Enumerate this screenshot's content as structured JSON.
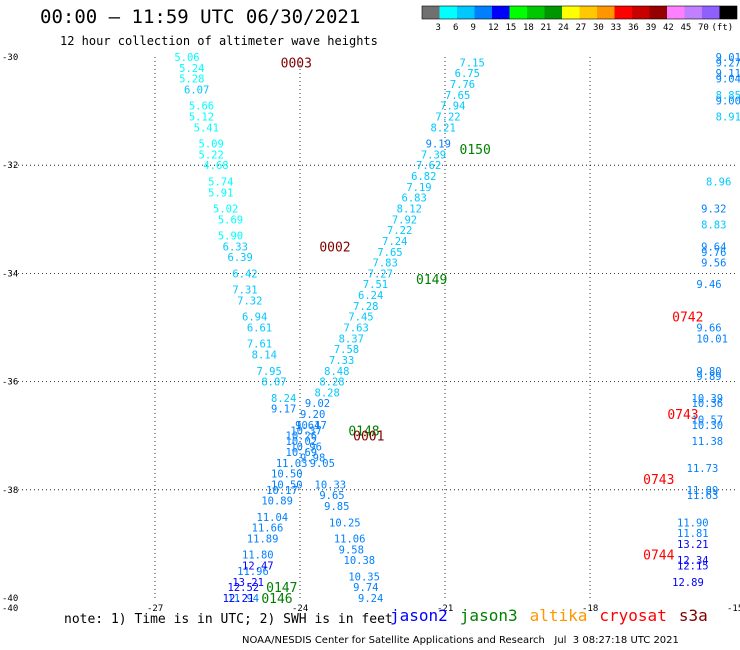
{
  "header": {
    "title": "00:00 – 11:59 UTC 06/30/2021",
    "subtitle": "12 hour collection of altimeter wave heights"
  },
  "colorbar": {
    "colors": [
      "#707070",
      "#00ffff",
      "#00c8ff",
      "#0080ff",
      "#0000ff",
      "#00ff00",
      "#00c800",
      "#009600",
      "#ffff00",
      "#ffc800",
      "#ff9600",
      "#ff0000",
      "#c80000",
      "#960000",
      "#ff80ff",
      "#c080ff",
      "#9060ff",
      "#000000"
    ],
    "labels": [
      "3",
      "6",
      "9",
      "12",
      "15",
      "18",
      "21",
      "24",
      "27",
      "30",
      "33",
      "36",
      "39",
      "42",
      "45",
      "70",
      "(ft)"
    ]
  },
  "footer": {
    "note": "note: 1) Time is in UTC; 2) SWH is in feet",
    "credit": "NOAA/NESDIS Center for Satellite Applications and Research   Jul  3 08:27:18 UTC 2021"
  },
  "legend": [
    {
      "name": "jason2",
      "color": "#0000ff"
    },
    {
      "name": "jason3",
      "color": "#008000"
    },
    {
      "name": "altika",
      "color": "#ff9600"
    },
    {
      "name": "cryosat",
      "color": "#ff0000"
    },
    {
      "name": "s3a",
      "color": "#800000"
    }
  ],
  "chart_data": {
    "type": "scatter",
    "title": "",
    "xlim": [
      -30,
      -15
    ],
    "ylim": [
      -40,
      -30
    ],
    "xticks": [
      -27,
      -24,
      -21,
      -18,
      -15
    ],
    "yticks": [
      -30,
      -32,
      -34,
      -36,
      -38,
      -40
    ],
    "xtick_labels": [
      "-27",
      "-24",
      "-21",
      "-18",
      "-15"
    ],
    "ytick_labels": [
      "-30",
      "-32",
      "-34",
      "-36",
      "-38",
      "-40"
    ],
    "grid": true,
    "tracks": [
      {
        "label": "0003",
        "x": -24.4,
        "y": -30.1,
        "color": "#800000"
      },
      {
        "label": "0002",
        "x": -23.6,
        "y": -33.5,
        "color": "#800000"
      },
      {
        "label": "0150",
        "x": -20.7,
        "y": -31.7,
        "color": "#008000"
      },
      {
        "label": "0149",
        "x": -21.6,
        "y": -34.1,
        "color": "#008000"
      },
      {
        "label": "0148",
        "x": -23.0,
        "y": -36.9,
        "color": "#008000"
      },
      {
        "label": "0001",
        "x": -22.9,
        "y": -37.0,
        "color": "#800000"
      },
      {
        "label": "0147",
        "x": -24.7,
        "y": -39.8,
        "color": "#008000"
      },
      {
        "label": "0146",
        "x": -24.8,
        "y": -40.0,
        "color": "#008000"
      },
      {
        "label": "0742",
        "x": -16.3,
        "y": -34.8,
        "color": "#ff0000"
      },
      {
        "label": "0743",
        "x": -16.4,
        "y": -36.6,
        "color": "#ff0000"
      },
      {
        "label": "0743",
        "x": -16.9,
        "y": -37.8,
        "color": "#ff0000"
      },
      {
        "label": "0744",
        "x": -16.9,
        "y": -39.2,
        "color": "#ff0000"
      }
    ],
    "points": [
      {
        "x": -26.6,
        "y": -30.0,
        "v": "5.06"
      },
      {
        "x": -26.5,
        "y": -30.2,
        "v": "5.24"
      },
      {
        "x": -26.5,
        "y": -30.4,
        "v": "5.28"
      },
      {
        "x": -26.4,
        "y": -30.6,
        "v": "6.07"
      },
      {
        "x": -26.3,
        "y": -30.9,
        "v": "5.66"
      },
      {
        "x": -26.3,
        "y": -31.1,
        "v": "5.12"
      },
      {
        "x": -26.2,
        "y": -31.3,
        "v": "5.41"
      },
      {
        "x": -26.1,
        "y": -31.6,
        "v": "5.09"
      },
      {
        "x": -26.1,
        "y": -31.8,
        "v": "5.22"
      },
      {
        "x": -26.0,
        "y": -32.0,
        "v": "4.68"
      },
      {
        "x": -25.9,
        "y": -32.3,
        "v": "5.74"
      },
      {
        "x": -25.9,
        "y": -32.5,
        "v": "5.91"
      },
      {
        "x": -25.8,
        "y": -32.8,
        "v": "5.02"
      },
      {
        "x": -25.7,
        "y": -33.0,
        "v": "5.69"
      },
      {
        "x": -25.7,
        "y": -33.3,
        "v": "5.90"
      },
      {
        "x": -25.6,
        "y": -33.5,
        "v": "6.33"
      },
      {
        "x": -25.5,
        "y": -33.7,
        "v": "6.39"
      },
      {
        "x": -25.4,
        "y": -34.0,
        "v": "6.42"
      },
      {
        "x": -25.4,
        "y": -34.3,
        "v": "7.31"
      },
      {
        "x": -25.3,
        "y": -34.5,
        "v": "7.32"
      },
      {
        "x": -25.2,
        "y": -34.8,
        "v": "6.94"
      },
      {
        "x": -25.1,
        "y": -35.0,
        "v": "6.61"
      },
      {
        "x": -25.1,
        "y": -35.3,
        "v": "7.61"
      },
      {
        "x": -25.0,
        "y": -35.5,
        "v": "8.14"
      },
      {
        "x": -24.9,
        "y": -35.8,
        "v": "7.95"
      },
      {
        "x": -24.8,
        "y": -36.0,
        "v": "8.07"
      },
      {
        "x": -24.6,
        "y": -36.3,
        "v": "8.24"
      },
      {
        "x": -20.7,
        "y": -30.1,
        "v": "7.15"
      },
      {
        "x": -20.8,
        "y": -30.3,
        "v": "6.75"
      },
      {
        "x": -20.9,
        "y": -30.5,
        "v": "7.76"
      },
      {
        "x": -21.0,
        "y": -30.7,
        "v": "7.65"
      },
      {
        "x": -21.1,
        "y": -30.9,
        "v": "7.94"
      },
      {
        "x": -21.2,
        "y": -31.1,
        "v": "7.22"
      },
      {
        "x": -21.3,
        "y": -31.3,
        "v": "8.21"
      },
      {
        "x": -21.4,
        "y": -31.6,
        "v": "9.19"
      },
      {
        "x": -21.5,
        "y": -31.8,
        "v": "7.39"
      },
      {
        "x": -21.6,
        "y": -32.0,
        "v": "7.62"
      },
      {
        "x": -21.7,
        "y": -32.2,
        "v": "6.82"
      },
      {
        "x": -21.8,
        "y": -32.4,
        "v": "7.19"
      },
      {
        "x": -21.9,
        "y": -32.6,
        "v": "6.83"
      },
      {
        "x": -22.0,
        "y": -32.8,
        "v": "8.12"
      },
      {
        "x": -22.1,
        "y": -33.0,
        "v": "7.92"
      },
      {
        "x": -22.2,
        "y": -33.2,
        "v": "7.22"
      },
      {
        "x": -22.3,
        "y": -33.4,
        "v": "7.24"
      },
      {
        "x": -22.4,
        "y": -33.6,
        "v": "7.65"
      },
      {
        "x": -22.5,
        "y": -33.8,
        "v": "7.83"
      },
      {
        "x": -22.6,
        "y": -34.0,
        "v": "7.27"
      },
      {
        "x": -22.7,
        "y": -34.2,
        "v": "7.51"
      },
      {
        "x": -22.8,
        "y": -34.4,
        "v": "6.24"
      },
      {
        "x": -22.9,
        "y": -34.6,
        "v": "7.28"
      },
      {
        "x": -23.0,
        "y": -34.8,
        "v": "7.45"
      },
      {
        "x": -23.1,
        "y": -35.0,
        "v": "7.63"
      },
      {
        "x": -23.2,
        "y": -35.2,
        "v": "8.37"
      },
      {
        "x": -23.3,
        "y": -35.4,
        "v": "7.58"
      },
      {
        "x": -23.4,
        "y": -35.6,
        "v": "7.33"
      },
      {
        "x": -23.5,
        "y": -35.8,
        "v": "8.48"
      },
      {
        "x": -23.6,
        "y": -36.0,
        "v": "8.28"
      },
      {
        "x": -23.7,
        "y": -36.2,
        "v": "8.28"
      },
      {
        "x": -23.9,
        "y": -36.4,
        "v": "9.02"
      },
      {
        "x": -24.0,
        "y": -36.6,
        "v": "9.20"
      },
      {
        "x": -24.1,
        "y": -36.8,
        "v": "9.64"
      },
      {
        "x": -24.6,
        "y": -36.5,
        "v": "9.17"
      },
      {
        "x": -24.1,
        "y": -36.8,
        "v": "10.17"
      },
      {
        "x": -24.2,
        "y": -36.9,
        "v": "10.37"
      },
      {
        "x": -24.3,
        "y": -37.0,
        "v": "10.26"
      },
      {
        "x": -24.3,
        "y": -37.1,
        "v": "10.02"
      },
      {
        "x": -24.2,
        "y": -37.2,
        "v": "10.96"
      },
      {
        "x": -24.3,
        "y": -37.3,
        "v": "10.69"
      },
      {
        "x": -24.0,
        "y": -37.4,
        "v": "9.98"
      },
      {
        "x": -24.5,
        "y": -37.5,
        "v": "11.03"
      },
      {
        "x": -23.8,
        "y": -37.5,
        "v": "9.05"
      },
      {
        "x": -24.6,
        "y": -37.7,
        "v": "10.50"
      },
      {
        "x": -24.6,
        "y": -37.9,
        "v": "10.50"
      },
      {
        "x": -23.7,
        "y": -37.9,
        "v": "10.33"
      },
      {
        "x": -24.7,
        "y": -38.0,
        "v": "10.17"
      },
      {
        "x": -23.6,
        "y": -38.1,
        "v": "9.65"
      },
      {
        "x": -24.8,
        "y": -38.2,
        "v": "10.89"
      },
      {
        "x": -23.5,
        "y": -38.3,
        "v": "9.85"
      },
      {
        "x": -24.9,
        "y": -38.5,
        "v": "11.04"
      },
      {
        "x": -23.4,
        "y": -38.6,
        "v": "10.25"
      },
      {
        "x": -25.0,
        "y": -38.7,
        "v": "11.66"
      },
      {
        "x": -23.3,
        "y": -38.9,
        "v": "11.06"
      },
      {
        "x": -25.1,
        "y": -38.9,
        "v": "11.89"
      },
      {
        "x": -23.2,
        "y": -39.1,
        "v": "9.58"
      },
      {
        "x": -25.2,
        "y": -39.2,
        "v": "11.80"
      },
      {
        "x": -23.1,
        "y": -39.3,
        "v": "10.38"
      },
      {
        "x": -25.3,
        "y": -39.5,
        "v": "11.96"
      },
      {
        "x": -23.0,
        "y": -39.6,
        "v": "10.35"
      },
      {
        "x": -22.9,
        "y": -39.8,
        "v": "9.74"
      },
      {
        "x": -22.8,
        "y": -40.0,
        "v": "9.24"
      },
      {
        "x": -25.5,
        "y": -40.0,
        "v": "11.94"
      },
      {
        "x": -25.2,
        "y": -39.4,
        "v": "12.47"
      },
      {
        "x": -25.4,
        "y": -39.7,
        "v": "13.21"
      },
      {
        "x": -25.5,
        "y": -39.8,
        "v": "12.52"
      },
      {
        "x": -25.6,
        "y": -40.0,
        "v": "12.21"
      },
      {
        "x": -15.4,
        "y": -30.0,
        "v": "9.01"
      },
      {
        "x": -15.4,
        "y": -30.1,
        "v": "9.27"
      },
      {
        "x": -15.4,
        "y": -30.3,
        "v": "9.11"
      },
      {
        "x": -15.4,
        "y": -30.4,
        "v": "9.04"
      },
      {
        "x": -15.4,
        "y": -30.7,
        "v": "8.85"
      },
      {
        "x": -15.4,
        "y": -30.8,
        "v": "9.00"
      },
      {
        "x": -15.4,
        "y": -31.1,
        "v": "8.91"
      },
      {
        "x": -15.6,
        "y": -32.3,
        "v": "8.96"
      },
      {
        "x": -15.7,
        "y": -32.8,
        "v": "9.32"
      },
      {
        "x": -15.7,
        "y": -33.1,
        "v": "8.83"
      },
      {
        "x": -15.7,
        "y": -33.5,
        "v": "9.64"
      },
      {
        "x": -15.7,
        "y": -33.6,
        "v": "9.76"
      },
      {
        "x": -15.7,
        "y": -33.8,
        "v": "9.56"
      },
      {
        "x": -15.8,
        "y": -34.2,
        "v": "9.46"
      },
      {
        "x": -15.8,
        "y": -35.0,
        "v": "9.66"
      },
      {
        "x": -15.8,
        "y": -35.2,
        "v": "10.01"
      },
      {
        "x": -15.8,
        "y": -35.8,
        "v": "9.80"
      },
      {
        "x": -15.8,
        "y": -35.9,
        "v": "9.89"
      },
      {
        "x": -15.9,
        "y": -36.3,
        "v": "10.39"
      },
      {
        "x": -15.9,
        "y": -36.4,
        "v": "10.36"
      },
      {
        "x": -15.9,
        "y": -36.7,
        "v": "10.57"
      },
      {
        "x": -15.9,
        "y": -36.8,
        "v": "10.30"
      },
      {
        "x": -15.9,
        "y": -37.1,
        "v": "11.38"
      },
      {
        "x": -16.0,
        "y": -37.6,
        "v": "11.73"
      },
      {
        "x": -16.0,
        "y": -38.0,
        "v": "11.89"
      },
      {
        "x": -16.0,
        "y": -38.1,
        "v": "11.63"
      },
      {
        "x": -16.2,
        "y": -38.6,
        "v": "11.90"
      },
      {
        "x": -16.2,
        "y": -38.8,
        "v": "11.81"
      },
      {
        "x": -16.2,
        "y": -39.0,
        "v": "13.21"
      },
      {
        "x": -16.2,
        "y": -39.3,
        "v": "12.34"
      },
      {
        "x": -16.2,
        "y": -39.4,
        "v": "12.15"
      },
      {
        "x": -16.3,
        "y": -39.7,
        "v": "12.89"
      }
    ]
  }
}
